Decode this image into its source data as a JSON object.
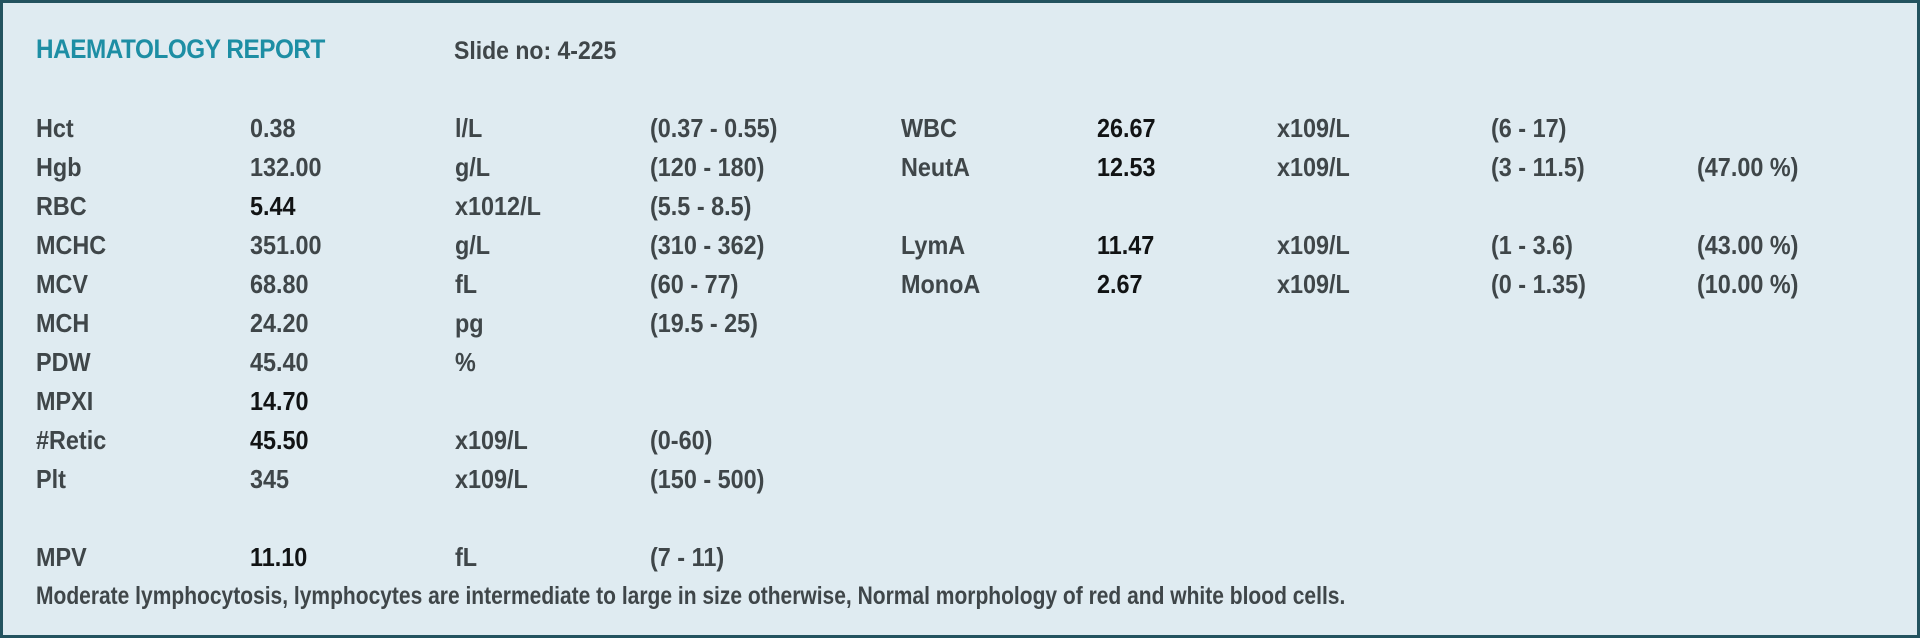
{
  "report": {
    "title": "HAEMATOLOGY REPORT",
    "slide": "Slide no: 4-225",
    "left_results": [
      {
        "name": "Hct",
        "value": "0.38",
        "unit": "l/L",
        "range": "(0.37 - 0.55)",
        "flag": false
      },
      {
        "name": "Hgb",
        "value": "132.00",
        "unit": "g/L",
        "range": "(120 - 180)",
        "flag": false
      },
      {
        "name": "RBC",
        "value": "5.44",
        "unit": "x1012/L",
        "range": "(5.5 - 8.5)",
        "flag": true
      },
      {
        "name": "MCHC",
        "value": "351.00",
        "unit": "g/L",
        "range": "(310 - 362)",
        "flag": false
      },
      {
        "name": "MCV",
        "value": "68.80",
        "unit": "fL",
        "range": "(60 - 77)",
        "flag": false
      },
      {
        "name": "MCH",
        "value": "24.20",
        "unit": "pg",
        "range": "(19.5 - 25)",
        "flag": false
      },
      {
        "name": "PDW",
        "value": "45.40",
        "unit": "%",
        "range": "",
        "flag": false
      },
      {
        "name": "MPXI",
        "value": "14.70",
        "unit": "",
        "range": "",
        "flag": true
      },
      {
        "name": "#Retic",
        "value": "45.50",
        "unit": "x109/L",
        "range": "(0-60)",
        "flag": true
      },
      {
        "name": "Plt",
        "value": "345",
        "unit": "x109/L",
        "range": "(150 - 500)",
        "flag": false
      },
      {
        "name": "",
        "value": "",
        "unit": "",
        "range": "",
        "flag": false
      },
      {
        "name": "MPV",
        "value": "11.10",
        "unit": "fL",
        "range": "(7 - 11)",
        "flag": true
      }
    ],
    "right_results": [
      {
        "name": "WBC",
        "value": "26.67",
        "unit": "x109/L",
        "range": "(6 - 17)",
        "percent": "",
        "flag": true
      },
      {
        "name": "NeutA",
        "value": "12.53",
        "unit": "x109/L",
        "range": "(3 - 11.5)",
        "percent": "(47.00 %)",
        "flag": true
      },
      {
        "name": "",
        "value": "",
        "unit": "",
        "range": "",
        "percent": "",
        "flag": false
      },
      {
        "name": "LymA",
        "value": "11.47",
        "unit": "x109/L",
        "range": "(1 - 3.6)",
        "percent": "(43.00 %)",
        "flag": true
      },
      {
        "name": "MonoA",
        "value": "2.67",
        "unit": "x109/L",
        "range": "(0 - 1.35)",
        "percent": "(10.00 %)",
        "flag": true
      }
    ],
    "comment": "Moderate lymphocytosis, lymphocytes are intermediate to large in size otherwise, Normal morphology of red and white blood cells."
  }
}
